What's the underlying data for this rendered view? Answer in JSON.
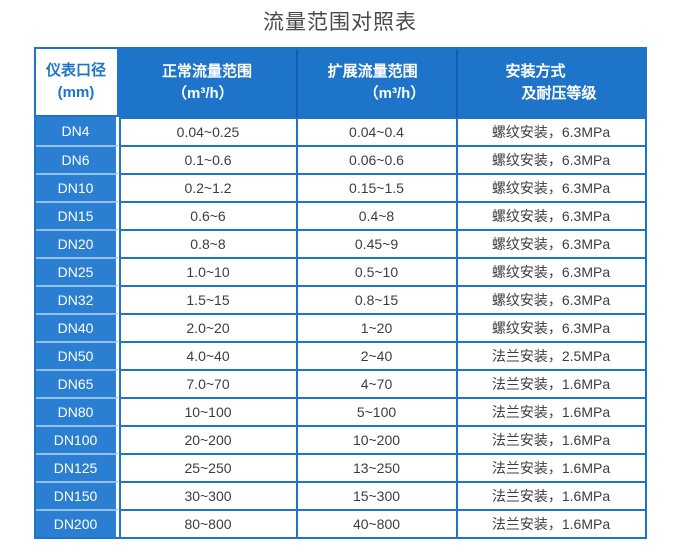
{
  "page": {
    "title": "流量范围对照表"
  },
  "table": {
    "header": {
      "col1": {
        "line1": "仪表口径",
        "line2": "(mm)"
      },
      "col2": {
        "line1": "正常流量范围",
        "line2": "（m³/h）"
      },
      "col3": {
        "line1": "扩展流量范围",
        "line2": "（m³/h）"
      },
      "col4": {
        "line1": "安装方式",
        "line2": "及耐压等级"
      }
    }
  },
  "chart_data": {
    "type": "table",
    "title": "流量范围对照表",
    "columns": [
      "仪表口径 (mm)",
      "正常流量范围（m³/h）",
      "扩展流量范围（m³/h）",
      "安装方式及耐压等级"
    ],
    "rows": [
      [
        "DN4",
        "0.04~0.25",
        "0.04~0.4",
        "螺纹安装，6.3MPa"
      ],
      [
        "DN6",
        "0.1~0.6",
        "0.06~0.6",
        "螺纹安装，6.3MPa"
      ],
      [
        "DN10",
        "0.2~1.2",
        "0.15~1.5",
        "螺纹安装，6.3MPa"
      ],
      [
        "DN15",
        "0.6~6",
        "0.4~8",
        "螺纹安装，6.3MPa"
      ],
      [
        "DN20",
        "0.8~8",
        "0.45~9",
        "螺纹安装，6.3MPa"
      ],
      [
        "DN25",
        "1.0~10",
        "0.5~10",
        "螺纹安装，6.3MPa"
      ],
      [
        "DN32",
        "1.5~15",
        "0.8~15",
        "螺纹安装，6.3MPa"
      ],
      [
        "DN40",
        "2.0~20",
        "1~20",
        "螺纹安装，6.3MPa"
      ],
      [
        "DN50",
        "4.0~40",
        "2~40",
        "法兰安装，2.5MPa"
      ],
      [
        "DN65",
        "7.0~70",
        "4~70",
        "法兰安装，1.6MPa"
      ],
      [
        "DN80",
        "10~100",
        "5~100",
        "法兰安装，1.6MPa"
      ],
      [
        "DN100",
        "20~200",
        "10~200",
        "法兰安装，1.6MPa"
      ],
      [
        "DN125",
        "25~250",
        "13~250",
        "法兰安装，1.6MPa"
      ],
      [
        "DN150",
        "30~300",
        "15~300",
        "法兰安装，1.6MPa"
      ],
      [
        "DN200",
        "80~800",
        "40~800",
        "法兰安装，1.6MPa"
      ]
    ]
  },
  "colors": {
    "primary_blue": "#1E74C8",
    "label_blue": "#2A7FD2",
    "divider_blue": "#155FA8",
    "title_text": "#4A4A4A",
    "body_text": "#3D3D3D",
    "header_text": "#FFFFFF"
  }
}
